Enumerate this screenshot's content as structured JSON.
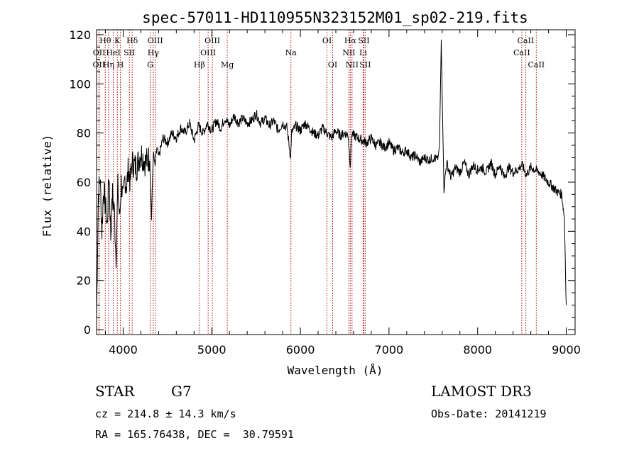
{
  "chart_data": {
    "type": "line",
    "title": "spec-57011-HD110955N323152M01_sp02-219.fits",
    "xlabel": "Wavelength (Å)",
    "ylabel": "Flux (relative)",
    "xlim": [
      3700,
      9100
    ],
    "ylim": [
      -2,
      122
    ],
    "xticks": [
      4000,
      5000,
      6000,
      7000,
      8000,
      9000
    ],
    "yticks": [
      0,
      20,
      40,
      60,
      80,
      100,
      120
    ],
    "series": [
      {
        "name": "flux",
        "x": [
          3700,
          3720,
          3740,
          3760,
          3780,
          3800,
          3820,
          3840,
          3860,
          3880,
          3900,
          3920,
          3940,
          3960,
          3980,
          4000,
          4020,
          4040,
          4060,
          4080,
          4100,
          4150,
          4200,
          4250,
          4300,
          4320,
          4340,
          4360,
          4380,
          4400,
          4450,
          4500,
          4550,
          4600,
          4650,
          4700,
          4750,
          4800,
          4850,
          4900,
          4950,
          5000,
          5050,
          5100,
          5150,
          5200,
          5250,
          5300,
          5350,
          5400,
          5450,
          5500,
          5550,
          5600,
          5650,
          5700,
          5750,
          5800,
          5850,
          5890,
          5900,
          5950,
          6000,
          6050,
          6100,
          6150,
          6200,
          6250,
          6300,
          6350,
          6400,
          6450,
          6500,
          6540,
          6563,
          6580,
          6600,
          6650,
          6700,
          6750,
          6800,
          6850,
          6900,
          6950,
          7000,
          7050,
          7100,
          7150,
          7200,
          7250,
          7300,
          7350,
          7400,
          7450,
          7500,
          7550,
          7570,
          7590,
          7600,
          7620,
          7650,
          7700,
          7750,
          7800,
          7850,
          7900,
          7950,
          8000,
          8050,
          8100,
          8150,
          8200,
          8250,
          8300,
          8350,
          8400,
          8450,
          8500,
          8550,
          8600,
          8650,
          8700,
          8750,
          8800,
          8850,
          8900,
          8950,
          8980,
          9000
        ],
        "y": [
          5,
          55,
          62,
          40,
          58,
          50,
          42,
          64,
          38,
          55,
          48,
          30,
          58,
          45,
          60,
          52,
          62,
          58,
          66,
          60,
          68,
          66,
          72,
          68,
          70,
          45,
          72,
          66,
          74,
          70,
          78,
          76,
          80,
          78,
          82,
          80,
          84,
          77,
          83,
          80,
          84,
          81,
          85,
          82,
          86,
          83,
          87,
          84,
          86,
          84,
          85,
          88,
          84,
          86,
          83,
          85,
          81,
          84,
          82,
          70,
          80,
          83,
          81,
          84,
          82,
          80,
          79,
          82,
          80,
          78,
          81,
          79,
          80,
          79,
          67,
          80,
          79,
          78,
          77,
          76,
          78,
          75,
          76,
          74,
          76,
          73,
          74,
          72,
          73,
          70,
          71,
          68,
          70,
          69,
          70,
          69,
          75,
          118,
          95,
          57,
          68,
          62,
          66,
          64,
          68,
          63,
          67,
          65,
          66,
          64,
          68,
          63,
          67,
          62,
          66,
          64,
          65,
          67,
          63,
          66,
          65,
          64,
          62,
          60,
          58,
          56,
          55,
          45,
          10
        ]
      }
    ],
    "lines": [
      {
        "label": "OII",
        "x": 3727,
        "row": 2
      },
      {
        "label": "OII",
        "x": 3729,
        "row": 1
      },
      {
        "label": "Hθ",
        "x": 3798,
        "row": 0
      },
      {
        "label": "Hη",
        "x": 3835,
        "row": 2
      },
      {
        "label": "HeI",
        "x": 3889,
        "row": 1
      },
      {
        "label": "K",
        "x": 3934,
        "row": 0
      },
      {
        "label": "H",
        "x": 3969,
        "row": 2
      },
      {
        "label": "SII",
        "x": 4070,
        "row": 1
      },
      {
        "label": "Hδ",
        "x": 4102,
        "row": 0
      },
      {
        "label": "G",
        "x": 4305,
        "row": 2
      },
      {
        "label": "Hγ",
        "x": 4340,
        "row": 1
      },
      {
        "label": "OIII",
        "x": 4363,
        "row": 0
      },
      {
        "label": "Hβ",
        "x": 4861,
        "row": 2
      },
      {
        "label": "OIII",
        "x": 4959,
        "row": 1
      },
      {
        "label": "OIII",
        "x": 5007,
        "row": 0
      },
      {
        "label": "Mg",
        "x": 5175,
        "row": 2
      },
      {
        "label": "Na",
        "x": 5893,
        "row": 1
      },
      {
        "label": "OI",
        "x": 6300,
        "row": 0
      },
      {
        "label": "OI",
        "x": 6364,
        "row": 2
      },
      {
        "label": "NII",
        "x": 6548,
        "row": 1
      },
      {
        "label": "Hα",
        "x": 6563,
        "row": 0
      },
      {
        "label": "NII",
        "x": 6583,
        "row": 2
      },
      {
        "label": "Li",
        "x": 6708,
        "row": 1
      },
      {
        "label": "SII",
        "x": 6716,
        "row": 0
      },
      {
        "label": "SII",
        "x": 6731,
        "row": 2
      },
      {
        "label": "CaII",
        "x": 8498,
        "row": 1
      },
      {
        "label": "CaII",
        "x": 8542,
        "row": 0
      },
      {
        "label": "CaII",
        "x": 8662,
        "row": 2
      }
    ],
    "colors": {
      "spectrum": "#000000",
      "lines": "#aa0000"
    }
  },
  "info": {
    "class": "STAR",
    "subclass": "G7",
    "survey": "LAMOST DR3",
    "cz": "cz = 214.8 ± 14.3 km/s",
    "obs_date": "Obs-Date: 20141219",
    "radec": "RA = 165.76438, DEC =  30.79591"
  }
}
